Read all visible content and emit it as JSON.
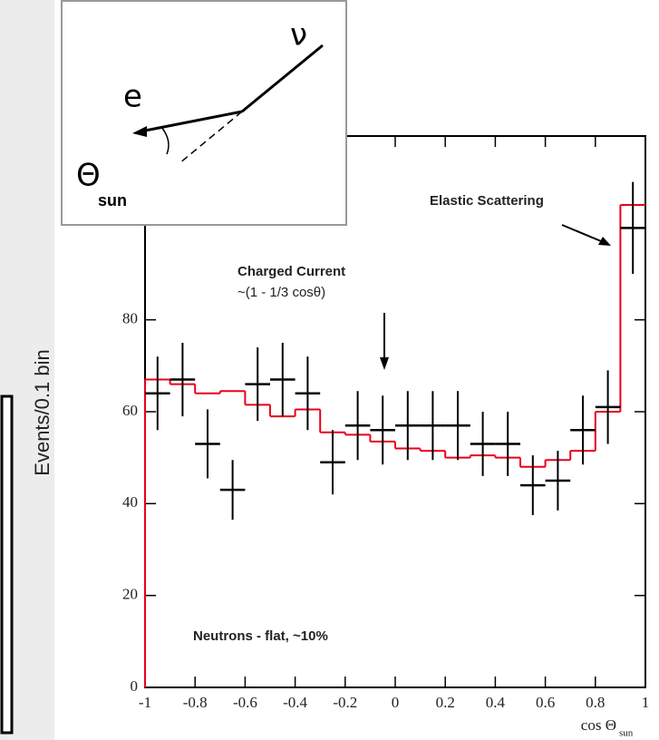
{
  "chart_data": {
    "type": "errorbar-step",
    "y_label": "Events/0.1 bin",
    "x_label": "cos Θ",
    "x_label_sub": "sun",
    "annotations": [
      "Elastic Scattering",
      "Charged Current",
      "~(1 - 1/3 cosθ)",
      "Neutrons - flat, ~10%"
    ],
    "inset_labels": [
      "ν",
      "e",
      "Θ",
      "sun"
    ],
    "xlim": [
      -1,
      1
    ],
    "ylim": [
      0,
      120
    ],
    "xticks": [
      -1,
      -0.8,
      -0.6,
      -0.4,
      -0.2,
      0,
      0.2,
      0.4,
      0.6,
      0.8,
      1
    ],
    "yticks": [
      0,
      20,
      40,
      60,
      80
    ],
    "series": [
      {
        "type": "errorbar",
        "color": "#000000",
        "x": [
          -0.95,
          -0.85,
          -0.75,
          -0.65,
          -0.55,
          -0.45,
          -0.35,
          -0.25,
          -0.15,
          -0.05,
          0.05,
          0.15,
          0.25,
          0.35,
          0.45,
          0.55,
          0.65,
          0.75,
          0.85,
          0.95
        ],
        "values": [
          64,
          67,
          53,
          43,
          66,
          67,
          64,
          49,
          57,
          56,
          57,
          57,
          57,
          53,
          53,
          44,
          45,
          56,
          61,
          100
        ],
        "errors": [
          8,
          8,
          7.5,
          6.5,
          8,
          8,
          8,
          7,
          7.5,
          7.5,
          7.5,
          7.5,
          7.5,
          7,
          7,
          6.5,
          6.5,
          7.5,
          8,
          10
        ]
      },
      {
        "type": "step",
        "color": "#e8001c",
        "bins": [
          -1,
          -0.9,
          -0.8,
          -0.7,
          -0.6,
          -0.5,
          -0.4,
          -0.3,
          -0.2,
          -0.1,
          0,
          0.1,
          0.2,
          0.3,
          0.4,
          0.5,
          0.6,
          0.7,
          0.8,
          0.9,
          1
        ],
        "values": [
          67,
          66,
          64,
          64.5,
          61.5,
          59,
          60.5,
          55.5,
          55,
          53.5,
          52,
          51.5,
          50,
          50.5,
          50,
          48,
          49.5,
          51.5,
          60,
          105
        ]
      }
    ]
  }
}
